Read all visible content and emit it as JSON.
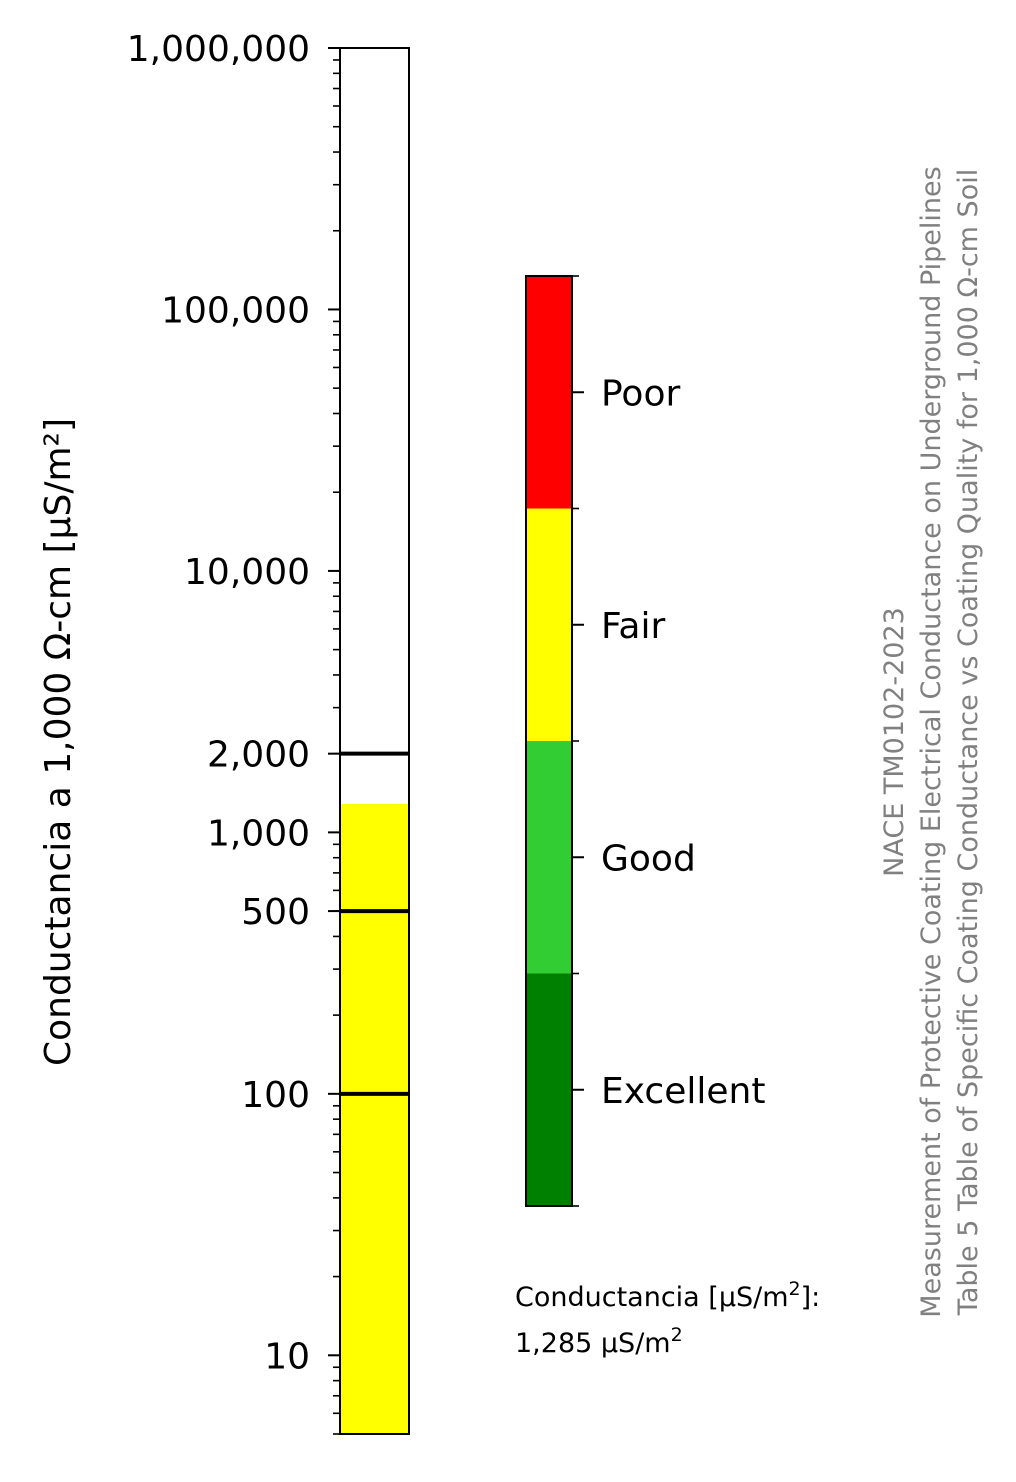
{
  "chart_data": {
    "type": "bar",
    "scale": "log",
    "ylabel": "Conductancia a 1,000 Ω-cm [μS/m²]",
    "ylim": [
      5,
      1000000
    ],
    "y_ticks": [
      {
        "value": 10,
        "label": "10"
      },
      {
        "value": 100,
        "label": "100"
      },
      {
        "value": 500,
        "label": "500"
      },
      {
        "value": 1000,
        "label": "1,000"
      },
      {
        "value": 2000,
        "label": "2,000"
      },
      {
        "value": 10000,
        "label": "10,000"
      },
      {
        "value": 100000,
        "label": "100,000"
      },
      {
        "value": 1000000,
        "label": "1,000,000"
      }
    ],
    "threshold_lines": [
      100,
      500,
      2000
    ],
    "value": 1285,
    "bar_color": "#ffff00",
    "legend": {
      "categories": [
        {
          "label": "Excellent",
          "color": "#008000"
        },
        {
          "label": "Good",
          "color": "#32cd32"
        },
        {
          "label": "Fair",
          "color": "#ffff00"
        },
        {
          "label": "Poor",
          "color": "#ff0000"
        }
      ]
    },
    "annotation": {
      "label_prefix": "Conductancia [μS/m",
      "label_suffix": "]:",
      "value_text": "1,285 μS/m"
    },
    "title_lines": [
      "NACE TM0102-2023",
      "Measurement of Protective Coating Electrical Conductance on Underground Pipelines",
      "Table 5 Table of Specific Coating Conductance vs Coating Quality for 1,000 Ω-cm Soil"
    ]
  }
}
